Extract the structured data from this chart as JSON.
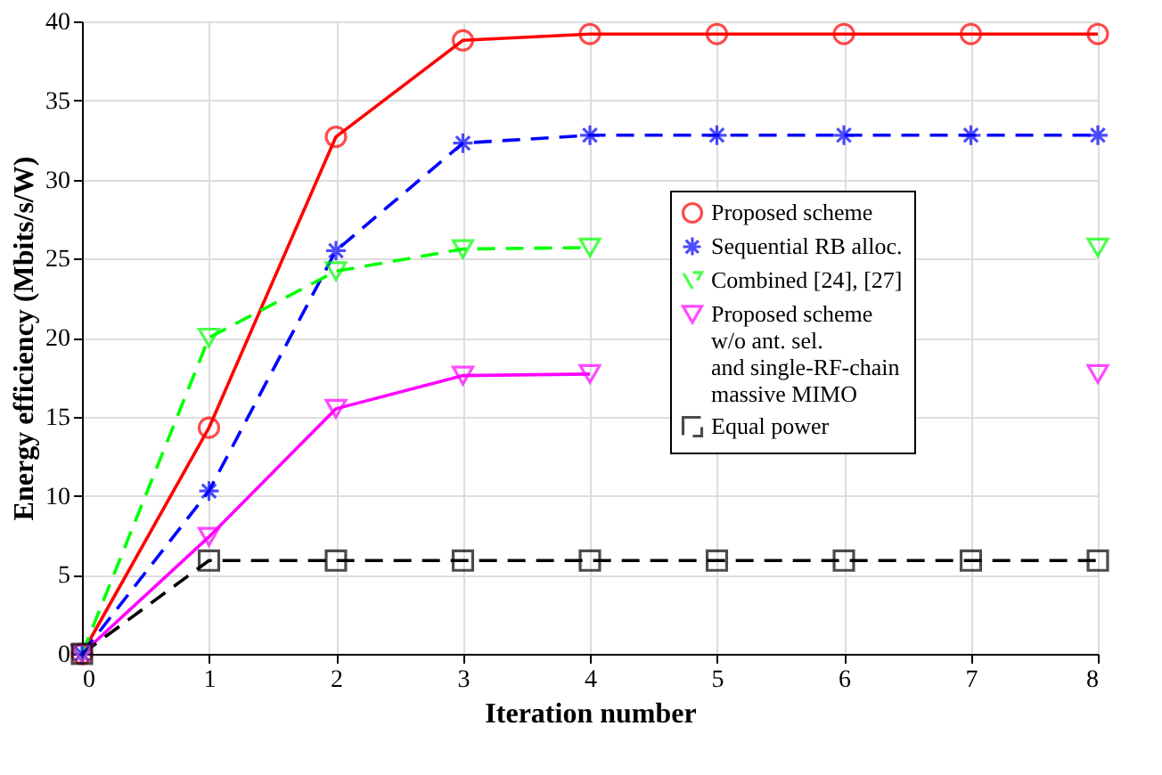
{
  "chart_data": {
    "type": "line",
    "xlabel": "Iteration number",
    "ylabel": "Energy efficiency (Mbits/s/W)",
    "x": [
      0,
      1,
      2,
      3,
      4,
      5,
      6,
      7,
      8
    ],
    "xlim": [
      0,
      8
    ],
    "xticks": [
      0,
      1,
      2,
      3,
      4,
      5,
      6,
      7,
      8
    ],
    "ylim": [
      0,
      40
    ],
    "yticks": [
      0,
      5,
      10,
      15,
      20,
      25,
      30,
      35,
      40
    ],
    "grid": true,
    "legend": "right",
    "series": [
      {
        "name": "Proposed scheme",
        "color": "#ff0000",
        "marker": "circle",
        "line_style": "solid",
        "values": [
          0,
          14.3,
          32.7,
          38.8,
          39.2,
          39.2,
          39.2,
          39.2,
          39.2
        ]
      },
      {
        "name": "Sequential RB alloc.",
        "color": "#0000ff",
        "marker": "cross",
        "line_style": "dashed",
        "values": [
          0,
          10.3,
          25.5,
          32.3,
          32.8,
          32.8,
          32.8,
          32.8,
          32.8
        ]
      },
      {
        "name": "Combined [24], [27]",
        "color": "#00ff00",
        "marker": "triangle",
        "line_style": "dashed",
        "values": [
          0,
          20,
          24.2,
          25.6,
          25.7,
          null,
          null,
          null,
          25.7
        ]
      },
      {
        "name": "Proposed scheme\nw/o ant. sel.\nand single-RF-chain\nmassive MIMO",
        "color": "#ff00ff",
        "marker": "triangle",
        "line_style": "solid",
        "values": [
          0,
          7.4,
          15.5,
          17.6,
          17.7,
          null,
          null,
          null,
          17.7
        ]
      },
      {
        "name": "Equal power",
        "color": "#000000",
        "marker": "square",
        "line_style": "dashed",
        "values": [
          0,
          5.9,
          5.9,
          5.9,
          5.9,
          5.9,
          5.9,
          5.9,
          5.9
        ]
      }
    ]
  }
}
